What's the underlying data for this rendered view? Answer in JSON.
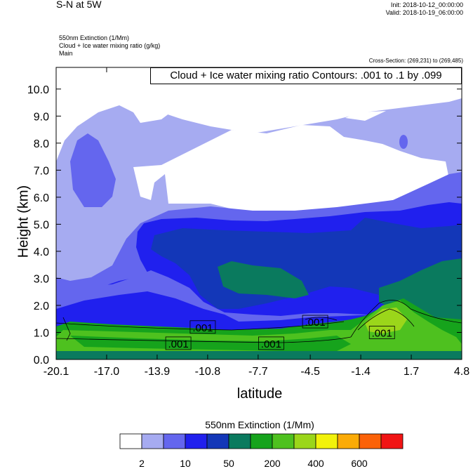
{
  "header": {
    "title": "S-N at 5W",
    "init": "Init: 2018-10-12_00:00:00",
    "valid": "Valid: 2018-10-19_06:00:00",
    "field1": "550nm Extinction   (1/Mm)",
    "field2": "Cloud + Ice water mixing ratio   (g/kg)",
    "domain": "Main",
    "cross_section": "Cross-Section: (269,231) to (269,485)",
    "contour_info": "Cloud + Ice water mixing ratio Contours: .001 to .1 by .099"
  },
  "chart_data": {
    "type": "heatmap",
    "xlabel": "latitude",
    "ylabel": "Height (km)",
    "xlim": [
      -20.1,
      4.8
    ],
    "ylim": [
      0.0,
      10.8
    ],
    "x_ticks": [
      "-20.1",
      "-17.0",
      "-13.9",
      "-10.8",
      "-7.7",
      "-4.5",
      "-1.4",
      "1.7",
      "4.8"
    ],
    "y_ticks": [
      "0.0",
      "1.0",
      "2.0",
      "3.0",
      "4.0",
      "5.0",
      "6.0",
      "7.0",
      "8.0",
      "9.0",
      "10.0"
    ],
    "contour_labels": [
      {
        "text": ".001",
        "lat": -11.1,
        "height": 1.2
      },
      {
        "text": ".001",
        "lat": -12.6,
        "height": 0.6
      },
      {
        "text": ".001",
        "lat": -6.9,
        "height": 0.6
      },
      {
        "text": ".001",
        "lat": -4.2,
        "height": 1.4
      },
      {
        "text": ".001",
        "lat": -0.1,
        "height": 1.0
      }
    ],
    "colorbar": {
      "title": "550nm Extinction  (1/Mm)",
      "colors": [
        "#ffffff",
        "#a6abf1",
        "#6466ee",
        "#2020ee",
        "#1337b8",
        "#0a7a5e",
        "#16a31c",
        "#4ec11f",
        "#9bd61a",
        "#f2f20b",
        "#fbab07",
        "#fb6208",
        "#f11414"
      ],
      "labels": [
        "2",
        "10",
        "50",
        "200",
        "400",
        "600"
      ]
    }
  }
}
